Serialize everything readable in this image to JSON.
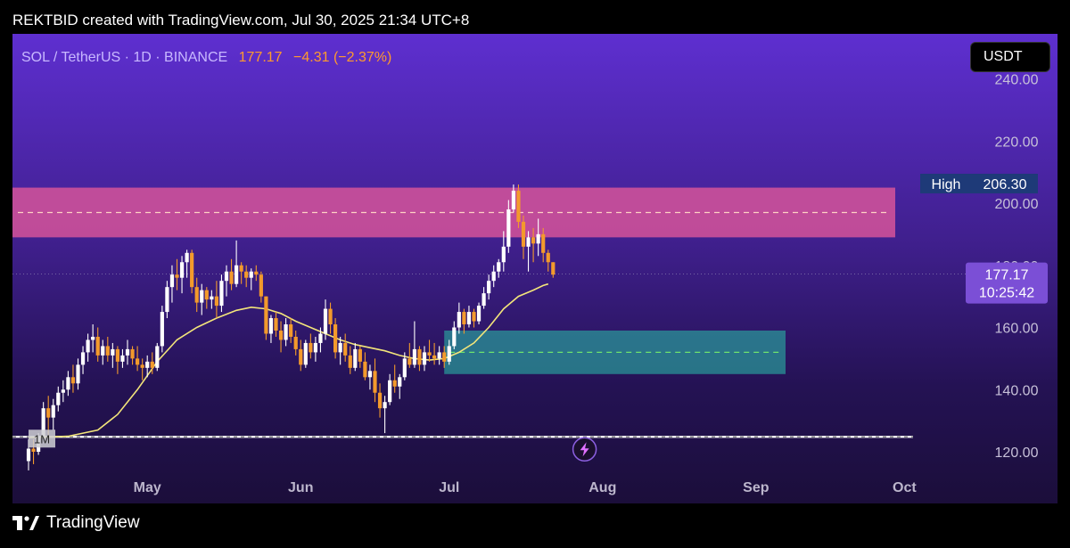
{
  "header": {
    "text": "REKTBID created with TradingView.com, Jul 30, 2025 21:34 UTC+8"
  },
  "legend": {
    "symbol": "SOL / TetherUS · 1D · BINANCE",
    "price": "177.17",
    "change": "−4.31 (−2.37%)"
  },
  "currency_button": "USDT",
  "high_label": {
    "label": "High",
    "value": "206.30"
  },
  "last_price_label": {
    "price": "177.17",
    "countdown": "10:25:42"
  },
  "footer": {
    "brand": "TradingView"
  },
  "colors": {
    "up": "#ffffff",
    "down": "#f39a2c",
    "sma": "#f3e57a",
    "resistance_zone": "#d6549a",
    "support_zone": "#2aa8a0",
    "support_line": "#6ee36e",
    "accent_label": "#7b4fd6"
  },
  "chart_data": {
    "type": "candlestick",
    "symbol": "SOL / TetherUS",
    "timeframe": "1D",
    "exchange": "BINANCE",
    "ylim": [
      115,
      244
    ],
    "y_ticks": [
      120,
      140,
      160,
      180,
      200,
      220,
      240
    ],
    "y_tick_labels": [
      "120.00",
      "140.00",
      "160.00",
      "180.00",
      "200.00",
      "220.00",
      "240.00"
    ],
    "x_ticks": [
      "May",
      "Jun",
      "Jul",
      "Aug",
      "Sep",
      "Oct"
    ],
    "x_tick_positions_date": [
      "2025-05-01",
      "2025-06-01",
      "2025-07-01",
      "2025-08-01",
      "2025-09-01",
      "2025-10-01"
    ],
    "start_date": "2025-04-07",
    "candles": [
      [
        117,
        124,
        114,
        121
      ],
      [
        121,
        124,
        116,
        120
      ],
      [
        120,
        126,
        119,
        125
      ],
      [
        125,
        136,
        124,
        134
      ],
      [
        134,
        138,
        125,
        131
      ],
      [
        131,
        137,
        127,
        135
      ],
      [
        135,
        141,
        133,
        139
      ],
      [
        139,
        143,
        136,
        140
      ],
      [
        140,
        146,
        138,
        144
      ],
      [
        144,
        148,
        139,
        142
      ],
      [
        142,
        150,
        140,
        148
      ],
      [
        148,
        154,
        145,
        152
      ],
      [
        152,
        158,
        149,
        156
      ],
      [
        156,
        161,
        152,
        157
      ],
      [
        157,
        160,
        149,
        151
      ],
      [
        151,
        156,
        148,
        154
      ],
      [
        154,
        157,
        149,
        151
      ],
      [
        151,
        155,
        147,
        153
      ],
      [
        153,
        154,
        145,
        149
      ],
      [
        149,
        153,
        147,
        151
      ],
      [
        151,
        156,
        148,
        153
      ],
      [
        153,
        154,
        148,
        150
      ],
      [
        150,
        154,
        146,
        148
      ],
      [
        148,
        150,
        143,
        147
      ],
      [
        147,
        151,
        144,
        149
      ],
      [
        149,
        152,
        145,
        147
      ],
      [
        147,
        155,
        146,
        154
      ],
      [
        154,
        167,
        152,
        165
      ],
      [
        165,
        175,
        163,
        173
      ],
      [
        173,
        180,
        168,
        177
      ],
      [
        177,
        182,
        172,
        176
      ],
      [
        176,
        183,
        171,
        181
      ],
      [
        181,
        185,
        176,
        184
      ],
      [
        184,
        185,
        171,
        173
      ],
      [
        173,
        176,
        165,
        168
      ],
      [
        168,
        174,
        164,
        172
      ],
      [
        172,
        173,
        166,
        169
      ],
      [
        169,
        172,
        166,
        170
      ],
      [
        170,
        175,
        163,
        167
      ],
      [
        167,
        177,
        165,
        175
      ],
      [
        175,
        180,
        170,
        178
      ],
      [
        178,
        182,
        172,
        174
      ],
      [
        174,
        188,
        173,
        180
      ],
      [
        180,
        181,
        174,
        178
      ],
      [
        178,
        180,
        173,
        176
      ],
      [
        176,
        179,
        172,
        178
      ],
      [
        178,
        180,
        175,
        177
      ],
      [
        177,
        178,
        168,
        170
      ],
      [
        170,
        170,
        156,
        158
      ],
      [
        158,
        164,
        155,
        163
      ],
      [
        163,
        165,
        157,
        159
      ],
      [
        159,
        162,
        152,
        156
      ],
      [
        156,
        163,
        154,
        161
      ],
      [
        161,
        163,
        155,
        157
      ],
      [
        157,
        159,
        151,
        153
      ],
      [
        153,
        156,
        146,
        148
      ],
      [
        148,
        156,
        147,
        155
      ],
      [
        155,
        158,
        150,
        152
      ],
      [
        152,
        157,
        149,
        155
      ],
      [
        155,
        160,
        152,
        158
      ],
      [
        158,
        169,
        156,
        166
      ],
      [
        166,
        168,
        158,
        161
      ],
      [
        161,
        163,
        150,
        152
      ],
      [
        152,
        157,
        148,
        155
      ],
      [
        155,
        158,
        149,
        151
      ],
      [
        151,
        154,
        145,
        147
      ],
      [
        147,
        155,
        146,
        153
      ],
      [
        153,
        154,
        147,
        149
      ],
      [
        149,
        152,
        143,
        144
      ],
      [
        144,
        148,
        140,
        146
      ],
      [
        146,
        150,
        136,
        139
      ],
      [
        139,
        142,
        131,
        134
      ],
      [
        134,
        138,
        126,
        136
      ],
      [
        136,
        145,
        135,
        143
      ],
      [
        143,
        148,
        139,
        141
      ],
      [
        141,
        145,
        137,
        144
      ],
      [
        144,
        152,
        143,
        150
      ],
      [
        150,
        155,
        147,
        148
      ],
      [
        148,
        162,
        147,
        153
      ],
      [
        153,
        154,
        146,
        148
      ],
      [
        148,
        154,
        146,
        152
      ],
      [
        152,
        156,
        149,
        151
      ],
      [
        151,
        155,
        148,
        150
      ],
      [
        150,
        154,
        148,
        152
      ],
      [
        152,
        154,
        147,
        149
      ],
      [
        149,
        156,
        148,
        154
      ],
      [
        154,
        162,
        153,
        160
      ],
      [
        160,
        168,
        158,
        165
      ],
      [
        165,
        166,
        158,
        161
      ],
      [
        161,
        167,
        160,
        165
      ],
      [
        165,
        166,
        160,
        162
      ],
      [
        162,
        168,
        161,
        167
      ],
      [
        167,
        173,
        166,
        171
      ],
      [
        171,
        177,
        169,
        175
      ],
      [
        175,
        180,
        173,
        178
      ],
      [
        178,
        182,
        176,
        181
      ],
      [
        181,
        191,
        178,
        186
      ],
      [
        186,
        201,
        184,
        198
      ],
      [
        198,
        206,
        197,
        204
      ],
      [
        204,
        206,
        192,
        194
      ],
      [
        194,
        196,
        182,
        186
      ],
      [
        186,
        191,
        178,
        189
      ],
      [
        189,
        192,
        181,
        187
      ],
      [
        187,
        195,
        183,
        190
      ],
      [
        190,
        192,
        181,
        184
      ],
      [
        184,
        185,
        178,
        181
      ],
      [
        181,
        181,
        176,
        177
      ]
    ],
    "sma_label": "moving average",
    "sma_points": [
      [
        0,
        124.5
      ],
      [
        8,
        125
      ],
      [
        14,
        127
      ],
      [
        18,
        132
      ],
      [
        22,
        140
      ],
      [
        26,
        149
      ],
      [
        30,
        156
      ],
      [
        34,
        160
      ],
      [
        38,
        163
      ],
      [
        42,
        165.5
      ],
      [
        45,
        166.5
      ],
      [
        48,
        166
      ],
      [
        51,
        164.5
      ],
      [
        54,
        162
      ],
      [
        57,
        160
      ],
      [
        60,
        158
      ],
      [
        63,
        156
      ],
      [
        66,
        154.5
      ],
      [
        69,
        153.5
      ],
      [
        72,
        152.5
      ],
      [
        75,
        151
      ],
      [
        78,
        150
      ],
      [
        81,
        149.5
      ],
      [
        84,
        150
      ],
      [
        87,
        152
      ],
      [
        90,
        155
      ],
      [
        93,
        160
      ],
      [
        96,
        166
      ],
      [
        99,
        170
      ],
      [
        102,
        172
      ],
      [
        104,
        173.5
      ],
      [
        105,
        174
      ]
    ],
    "zones": [
      {
        "name": "resistance",
        "low": 189,
        "high": 205,
        "mid": 197
      },
      {
        "name": "support",
        "low": 145,
        "high": 159,
        "mid": 152
      }
    ],
    "horizontal_line": 124.8,
    "high": 206.3,
    "last_price": 177.17
  }
}
